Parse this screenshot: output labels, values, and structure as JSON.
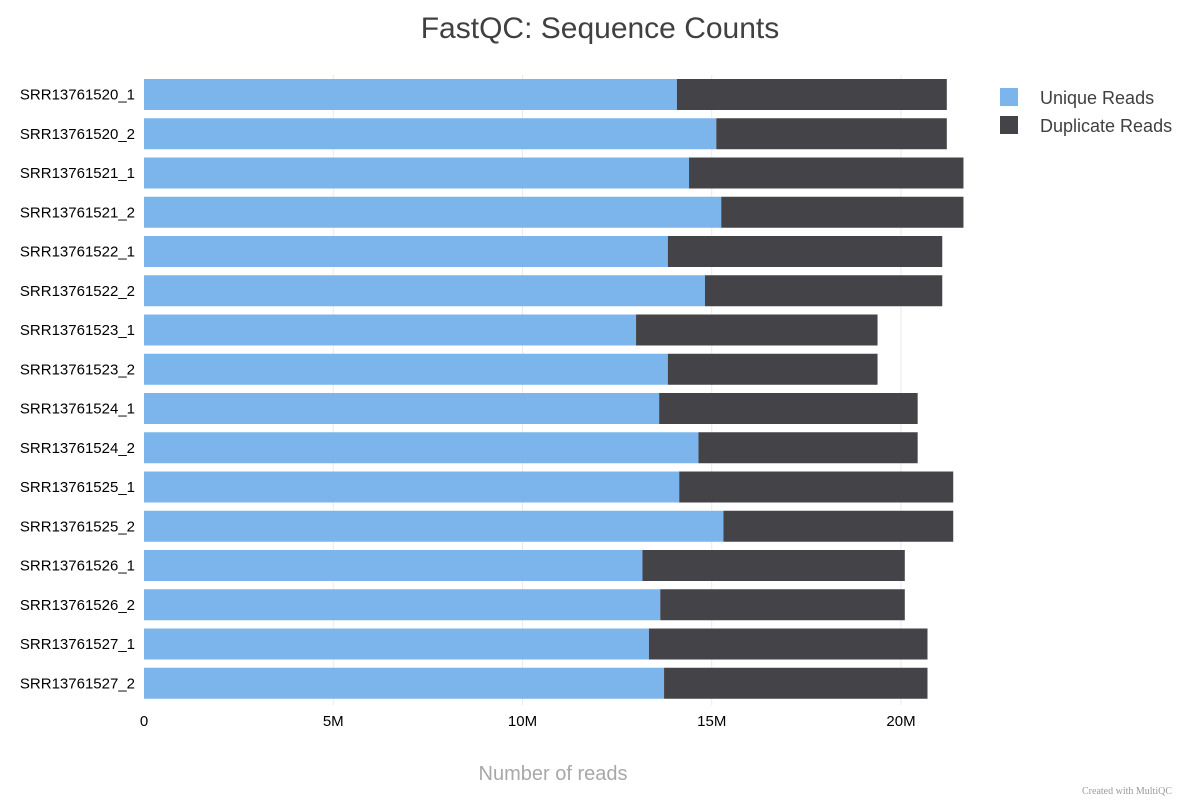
{
  "chart_data": {
    "type": "bar",
    "orientation": "horizontal",
    "stacked": true,
    "title": "FastQC: Sequence Counts",
    "xlabel": "Number of reads",
    "ylabel": "",
    "xlim": [
      0,
      22000000
    ],
    "x_ticks": [
      0,
      5000000,
      10000000,
      15000000,
      20000000
    ],
    "x_tick_labels": [
      "0",
      "5M",
      "10M",
      "15M",
      "20M"
    ],
    "grid": true,
    "legend_position": "top-right",
    "categories": [
      "SRR13761520_1",
      "SRR13761520_2",
      "SRR13761521_1",
      "SRR13761521_2",
      "SRR13761522_1",
      "SRR13761522_2",
      "SRR13761523_1",
      "SRR13761523_2",
      "SRR13761524_1",
      "SRR13761524_2",
      "SRR13761525_1",
      "SRR13761525_2",
      "SRR13761526_1",
      "SRR13761526_2",
      "SRR13761527_1",
      "SRR13761527_2"
    ],
    "series": [
      {
        "name": "Unique Reads",
        "color": "#7cb5ec",
        "values": [
          14080000,
          15120000,
          14400000,
          15250000,
          13840000,
          14820000,
          13000000,
          13840000,
          13610000,
          14650000,
          14140000,
          15310000,
          13170000,
          13640000,
          13340000,
          13740000
        ]
      },
      {
        "name": "Duplicate Reads",
        "color": "#434348",
        "values": [
          7130000,
          6090000,
          7250000,
          6400000,
          7250000,
          6270000,
          6380000,
          5540000,
          6830000,
          5790000,
          7240000,
          6070000,
          6930000,
          6460000,
          7360000,
          6960000
        ]
      }
    ]
  },
  "footer": {
    "credit": "Created with MultiQC"
  }
}
